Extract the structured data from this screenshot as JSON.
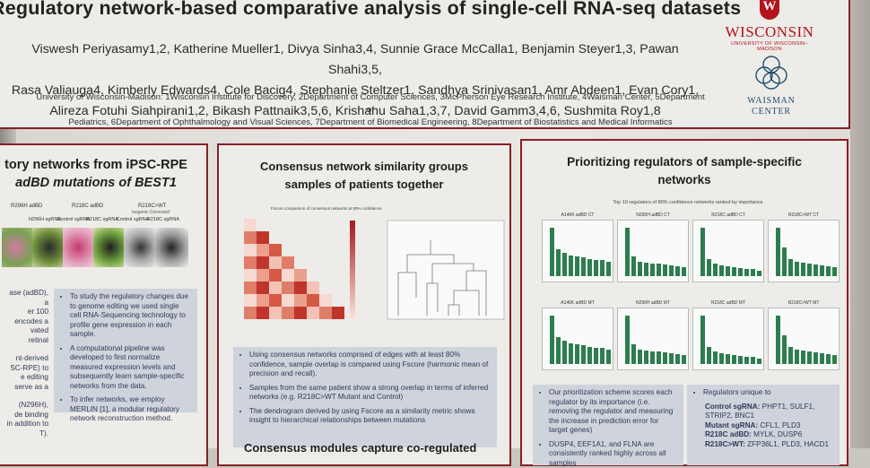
{
  "poster": {
    "title": "Regulatory network-based comparative analysis of single-cell RNA-seq datasets",
    "authors_line1": "Viswesh Periyasamy1,2, Katherine Mueller1, Divya Sinha3,4, Sunnie Grace McCalla1, Benjamin Steyer1,3, Pawan Shahi3,5,",
    "authors_line2": "Rasa Valiauga4, Kimberly Edwards4, Cole Bacig4, Stephanie Steltzer1, Sandhya Srinivasan1, Amr Abdeen1, Evan Cory1,",
    "authors_line3": "Alireza Fotuhi Siahpirani1,2, Bikash Pattnaik3,5,6, Krishanu Saha1,3,7, David Gamm3,4,6, Sushmita Roy1,8",
    "affil_line1": "University of Wisconsin-Madison: 1Wisconsin Institute for Discovery, 2Department of Computer Sciences, 3McPherson Eye Research Institute, 4Waisman Center, 5Department of",
    "affil_line2": "Pediatrics, 6Department of Ophthalmology and Visual Sciences, 7Department of Biomedical Engineering, 8Department of Biostatistics and Medical Informatics"
  },
  "logos": {
    "uw_crest": "W",
    "uw_word": "WISCONSIN",
    "uw_sub": "UNIVERSITY OF WISCONSIN–MADISON",
    "waisman_line1": "WAISMAN",
    "waisman_line2": "CENTER"
  },
  "left_panel": {
    "title_line1": "tory networks from iPSC-RPE",
    "title_line2": "adBD mutations of BEST1",
    "group1": "R296H adBD",
    "group2": "R218C adBD",
    "group3": "R218C>WT",
    "group3_sub": "Isogenic Corrected",
    "tile_labels": [
      "",
      "N296H sgRNA",
      "Control sgRNA",
      "R218C sgRNA",
      "Control sgRNA",
      "R218C sgRNA"
    ],
    "left_text": [
      "ase (adBD), a",
      "er 100",
      "encodes a",
      "vated",
      "retinal",
      "",
      "nt-derived",
      "SC-RPE) to",
      "e editing",
      "serve as a",
      "",
      "(N296H),",
      "de binding",
      "in addition to",
      "T)."
    ],
    "bullets": [
      "To study the regulatory changes due to genome editing we used single cell RNA-Sequencing technology to profile gene expression in each sample.",
      "A computational pipeline was developed to first normalize measured expression levels and subsequently learn sample-specific networks from the data.",
      "To infer networks, we employ MERLIN [1], a modular regulatory network reconstruction method."
    ]
  },
  "mid_panel": {
    "title_line1": "Consensus network similarity groups",
    "title_line2": "samples of patients together",
    "heatmap_title": "Fscore comparison of consensus networks at 80% confidence",
    "bullets": [
      "Using consensus networks comprised of edges with at least 80% confidence, sample overlap is compared using Fscore (harmonic mean of precision and recall).",
      "Samples from the same patient show a strong overlap in terms of inferred networks (e.g. R218C>WT Mutant and Control)",
      "The dendrogram derived by using Fscore as a similarity metric shows insight to hierarchical relationships between mutations"
    ],
    "next_title": "Consensus modules capture co-regulated"
  },
  "right_panel": {
    "title_line1": "Prioritizing regulators of sample-specific",
    "title_line2": "networks",
    "chart_title": "Top 10 regulators of 80% confidence networks ranked by importance",
    "mini_titles": [
      "A146K adBD CT",
      "N296H adBD CT",
      "R218C adBD CT",
      "R218C>WT CT",
      "A146K adBD MT",
      "N296H adBD MT",
      "R218C adBD MT",
      "R218C>WT MT"
    ],
    "bullets_left": [
      "Our prioritization scheme scores each regulator by its importance (i.e. removing the regulator and measuring the increase in prediction error for target genes)",
      "DUSP4, EEF1A1, and FLNA are consistently ranked highly across all samples"
    ],
    "reg_intro": "Regulators unique to",
    "reg_lines": [
      {
        "label": "Control sgRNA:",
        "genes": " PHPT1, SULF1, STRIP2, BNC1"
      },
      {
        "label": "Mutant sgRNA:",
        "genes": " CFL1, PLD3"
      },
      {
        "label": "R218C adBD:",
        "genes": " MYLK, DUSP6"
      },
      {
        "label": "R218C>WT:",
        "genes": " ZFP36L1, PLD3, HACD1"
      }
    ]
  },
  "colors": {
    "border": "#8a1f24",
    "bar": "#2e7d4f",
    "bullet_bg": "#cfd3dc",
    "heat_dark": "#c0352b"
  }
}
